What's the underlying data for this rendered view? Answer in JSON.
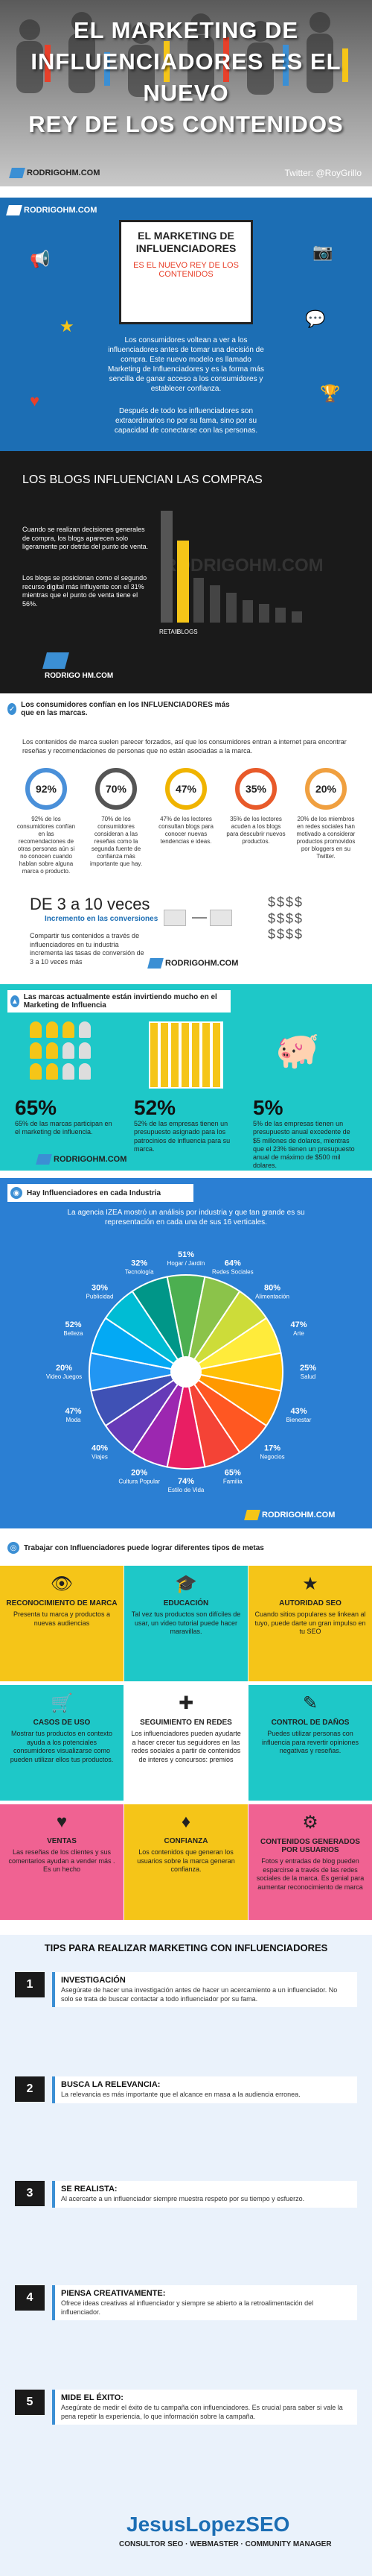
{
  "header": {
    "title_l1": "EL MARKETING DE",
    "title_l2": "INFLUENCIADORES ES EL NUEVO",
    "title_l3": "REY DE LOS CONTENIDOS",
    "brand": "RODRIGOHM.COM",
    "twitter": "Twitter: @RoyGrillo"
  },
  "intro": {
    "brand": "RODRIGOHM.COM",
    "card_title": "EL MARKETING DE INFLUENCIADORES",
    "card_sub": "ES EL NUEVO REY DE LOS CONTENIDOS",
    "p1": "Los consumidores voltean a ver a los influenciadores antes de tomar una decisión de compra. Este nuevo modelo es llamado Marketing de Influenciadores y es la forma más sencilla de ganar acceso a los consumidores y establecer confianza.",
    "p2": "Después de todo los influenciadores son extraordinarios no por su fama, sino por su capacidad de conectarse con las personas."
  },
  "blogs": {
    "title": "LOS BLOGS INFLUENCIAN LAS COMPRAS",
    "p1": "Cuando se realizan decisiones generales de compra, los blogs aparecen solo ligeramente por detrás del punto de venta.",
    "p2": "Los blogs se posicionan como el segundo recurso digital más influyente con el 31% mientras que el punto de venta tiene el 56%.",
    "bar_labels": [
      "RETAIL",
      "BLOGS"
    ],
    "watermark": "RODRIGOHM.COM",
    "brand": "RODRIGO HM.COM"
  },
  "confidence": {
    "header": "Los consumidores confían en los INFLUENCIADORES más que en las marcas.",
    "intro": "Los contenidos de marca suelen parecer forzados, así que los consumidores entran a internet para encontrar reseñas y recomendaciones de personas que no están asociadas a la marca.",
    "rings": [
      {
        "pct": "92%",
        "text": "92% de los consumidores confían en las recomendaciones de otras personas aún si no conocen cuando hablan sobre alguna marca o producto."
      },
      {
        "pct": "70%",
        "text": "70% de los consumidores consideran a las reseñas como la segunda fuente de confianza más importante que hay."
      },
      {
        "pct": "47%",
        "text": "47% de los lectores consultan blogs para conocer nuevas tendencias e ideas."
      },
      {
        "pct": "35%",
        "text": "35% de los lectores acuden a los blogs para descubrir nuevos productos."
      },
      {
        "pct": "20%",
        "text": "20% de los miembros en redes sociales han motivado a considerar productos promovidos por bloggers en su Twitter."
      }
    ],
    "ring_colors": [
      "#4a90d9",
      "#555555",
      "#f0b400",
      "#e85a2a",
      "#f0a040"
    ],
    "conv_title": "DE 3 a 10 veces",
    "conv_sub": "Incremento en las conversiones",
    "conv_text": "Compartir tus contenidos a través de influenciadores en tu industria incrementa las tasas de conversión de 3 a 10 veces más",
    "brand": "RODRIGOHM.COM"
  },
  "invest": {
    "header": "Las marcas actualmente están invirtiendo mucho en el Marketing de Influencia",
    "stats": [
      {
        "pct": "65%",
        "text": "65% de las marcas participan en el marketing de influencia."
      },
      {
        "pct": "52%",
        "text": "52% de las empresas tienen un presupuesto asignado para los patrocinios de influencia para su marca."
      },
      {
        "pct": "5%",
        "text": "5% de las empresas tienen un presupuesto anual excedente de $5 millones de dolares, mientras que el 23% tienen un presupuesto anual de máximo de $500 mil dolares."
      }
    ],
    "brand": "RODRIGOHM.COM"
  },
  "industries": {
    "header": "Hay Influenciadores en cada Industria",
    "intro": "La agencia IZEA mostró un análisis por industria y que tan grande es su representación en cada una de sus 16 verticales.",
    "segments": [
      {
        "name": "Hogar / Jardín",
        "pct": "51%"
      },
      {
        "name": "Redes Sociales",
        "pct": "64%"
      },
      {
        "name": "Alimentación",
        "pct": "80%"
      },
      {
        "name": "Arte",
        "pct": "47%"
      },
      {
        "name": "Salud",
        "pct": "25%"
      },
      {
        "name": "Bienestar",
        "pct": "43%"
      },
      {
        "name": "Negocios",
        "pct": "17%"
      },
      {
        "name": "Familia",
        "pct": "65%"
      },
      {
        "name": "Estilo de Vida",
        "pct": "74%"
      },
      {
        "name": "Cultura Popular",
        "pct": "20%"
      },
      {
        "name": "Viajes",
        "pct": "40%"
      },
      {
        "name": "Moda",
        "pct": "47%"
      },
      {
        "name": "Video Juegos",
        "pct": "20%"
      },
      {
        "name": "Belleza",
        "pct": "52%"
      },
      {
        "name": "Publicidad",
        "pct": "30%"
      },
      {
        "name": "Tecnología",
        "pct": "32%"
      }
    ],
    "segment_colors": [
      "#4caf50",
      "#8bc34a",
      "#cddc39",
      "#ffeb3b",
      "#ffc107",
      "#ff9800",
      "#ff5722",
      "#f44336",
      "#e91e63",
      "#9c27b0",
      "#673ab7",
      "#3f51b5",
      "#2196f3",
      "#03a9f4",
      "#00bcd4",
      "#009688"
    ],
    "brand": "RODRIGOHM.COM"
  },
  "goals": {
    "header": "Trabajar con Influenciadores puede lograr diferentes tipos de metas",
    "tiles": [
      {
        "icon": "👁",
        "title": "RECONOCIMIENTO DE MARCA",
        "text": "Presenta tu marca y productos a nuevas audiencias",
        "color": "#f5c518"
      },
      {
        "icon": "🎓",
        "title": "EDUCACIÓN",
        "text": "Tal vez tus productos son difíciles de usar, un video tutorial puede hacer maravillas.",
        "color": "#1ec8c8"
      },
      {
        "icon": "★",
        "title": "AUTORIDAD SEO",
        "text": "Cuando sitios populares se linkean al tuyo, puede darte un gran impulso en tu SEO",
        "color": "#f5c518"
      },
      {
        "icon": "🛒",
        "title": "CASOS DE USO",
        "text": "Mostrar tus productos en contexto ayuda a los potenciales consumidores visualizarse como pueden utilizar ellos tus productos.",
        "color": "#1ec8c8"
      },
      {
        "icon": "✚",
        "title": "SEGUIMIENTO EN REDES",
        "text": "Los influenciadores pueden ayudarte a hacer crecer tus seguidores en las redes sociales a partir de contenidos de interes y concursos: premios",
        "color": "#ffffff"
      },
      {
        "icon": "✎",
        "title": "CONTROL DE DAÑOS",
        "text": "Puedes utilizar personas con influencia para revertir opiniones negativas y reseñas.",
        "color": "#1ec8c8"
      },
      {
        "icon": "♥",
        "title": "VENTAS",
        "text": "Las reseñas de los clientes y sus comentarios ayudan a vender más . Es un hecho",
        "color": "#f06292"
      },
      {
        "icon": "♦",
        "title": "CONFIANZA",
        "text": "Los contenidos que generan los usuarios sobre la marca generan confianza.",
        "color": "#f5c518"
      },
      {
        "icon": "⚙",
        "title": "CONTENIDOS GENERADOS POR USUARIOS",
        "text": "Fotos y entradas de blog pueden esparcirse a través de las redes sociales de la marca. Es genial para aumentar reconocimiento de marca",
        "color": "#f06292"
      }
    ]
  },
  "tips": {
    "header": "TIPS PARA REALIZAR MARKETING CON INFLUENCIADORES",
    "items": [
      {
        "num": "1",
        "title": "INVESTIGACIÓN",
        "text": "Asegúrate de hacer una investigación antes de hacer un acercamiento a un influenciador. No solo se trata de buscar contactar a todo influenciador por su fama."
      },
      {
        "num": "2",
        "title": "BUSCA LA RELEVANCIA:",
        "text": "La relevancia es más importante que el alcance en masa a la audiencia erronea."
      },
      {
        "num": "3",
        "title": "SE REALISTA:",
        "text": "Al acercarte a un influenciador siempre muestra respeto por su tiempo y esfuerzo."
      },
      {
        "num": "4",
        "title": "PIENSA CREATIVAMENTE:",
        "text": "Ofrece ideas creativas al influenciador y siempre se abierto a la retroalimentación del influenciador."
      },
      {
        "num": "5",
        "title": "MIDE EL ÉXITO:",
        "text": "Asegúrate de medir el éxito de tu campaña con influenciadores. Es crucial para saber si vale la pena repetir la experiencia, lo que información sobre la campaña."
      }
    ],
    "footer_brand": "JesusLopezSEO",
    "footer_sub": "CONSULTOR SEO · WEBMASTER · COMMUNITY MANAGER"
  }
}
